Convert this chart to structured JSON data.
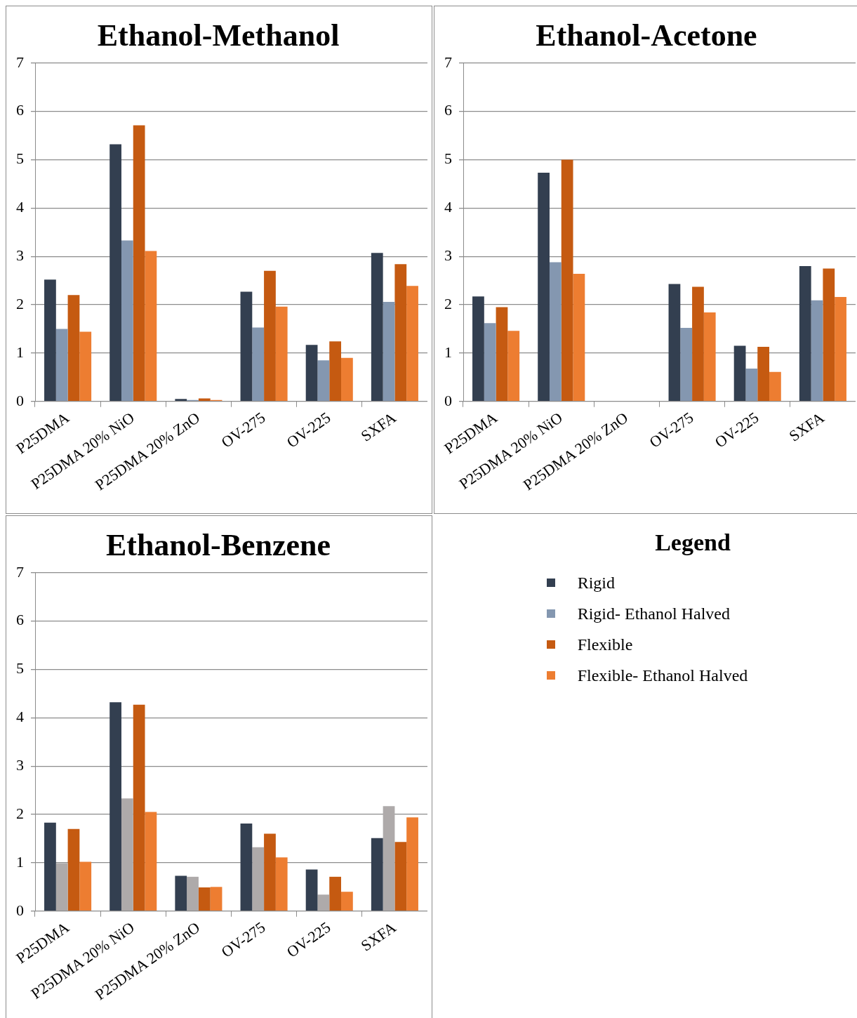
{
  "chart_data": [
    {
      "type": "bar",
      "title": "Ethanol-Methanol",
      "categories": [
        "P25DMA",
        "P25DMA 20% NiO",
        "P25DMA 20% ZnO",
        "OV-275",
        "OV-225",
        "SXFA"
      ],
      "ylim": [
        0,
        7
      ],
      "yticks": [
        0,
        1,
        2,
        3,
        4,
        5,
        6,
        7
      ],
      "grid": "y",
      "legend": "bottom right",
      "legend_title": "Legend",
      "series": [
        {
          "name": "Rigid",
          "color": "#333f50",
          "values": [
            2.52,
            5.32,
            0.05,
            2.27,
            1.17,
            3.07
          ]
        },
        {
          "name": "Rigid- Ethanol Halved",
          "color": "#8497b0",
          "values": [
            1.5,
            3.33,
            0.03,
            1.53,
            0.85,
            2.06
          ]
        },
        {
          "name": "Flexible",
          "color": "#c55a11",
          "values": [
            2.2,
            5.71,
            0.06,
            2.7,
            1.24,
            2.84
          ]
        },
        {
          "name": "Flexible- Ethanol Halved",
          "color": "#ed7d31",
          "values": [
            1.44,
            3.11,
            0.03,
            1.96,
            0.9,
            2.39
          ]
        }
      ]
    },
    {
      "type": "bar",
      "title": "Ethanol-Acetone",
      "categories": [
        "P25DMA",
        "P25DMA 20% NiO",
        "P25DMA 20% ZnO",
        "OV-275",
        "OV-225",
        "SXFA"
      ],
      "ylim": [
        0,
        7
      ],
      "yticks": [
        0,
        1,
        2,
        3,
        4,
        5,
        6,
        7
      ],
      "grid": "y",
      "series": [
        {
          "color": "#333f50",
          "values": [
            2.17,
            4.73,
            0,
            2.43,
            1.15,
            2.8
          ]
        },
        {
          "color": "#8497b0",
          "values": [
            1.62,
            2.88,
            0.01,
            1.52,
            0.68,
            2.09
          ]
        },
        {
          "color": "#c55a11",
          "values": [
            1.95,
            5.0,
            0,
            2.37,
            1.13,
            2.75
          ]
        },
        {
          "color": "#ed7d31",
          "values": [
            1.46,
            2.64,
            0,
            1.84,
            0.61,
            2.16
          ]
        }
      ]
    },
    {
      "type": "bar",
      "title": "Ethanol-Benzene",
      "categories": [
        "P25DMA",
        "P25DMA 20% NiO",
        "P25DMA 20% ZnO",
        "OV-275",
        "OV-225",
        "SXFA"
      ],
      "ylim": [
        0,
        7
      ],
      "yticks": [
        0,
        1,
        2,
        3,
        4,
        5,
        6,
        7
      ],
      "grid": "y",
      "series": [
        {
          "color": "#333f50",
          "values": [
            1.83,
            4.32,
            0.73,
            1.81,
            0.86,
            1.51
          ]
        },
        {
          "color": "#aeaaaa",
          "values": [
            0.99,
            2.33,
            0.71,
            1.32,
            0.34,
            2.17
          ]
        },
        {
          "color": "#c55a11",
          "values": [
            1.7,
            4.27,
            0.49,
            1.6,
            0.71,
            1.43
          ]
        },
        {
          "color": "#ed7d31",
          "values": [
            1.02,
            2.05,
            0.5,
            1.11,
            0.4,
            1.94
          ]
        }
      ]
    }
  ]
}
